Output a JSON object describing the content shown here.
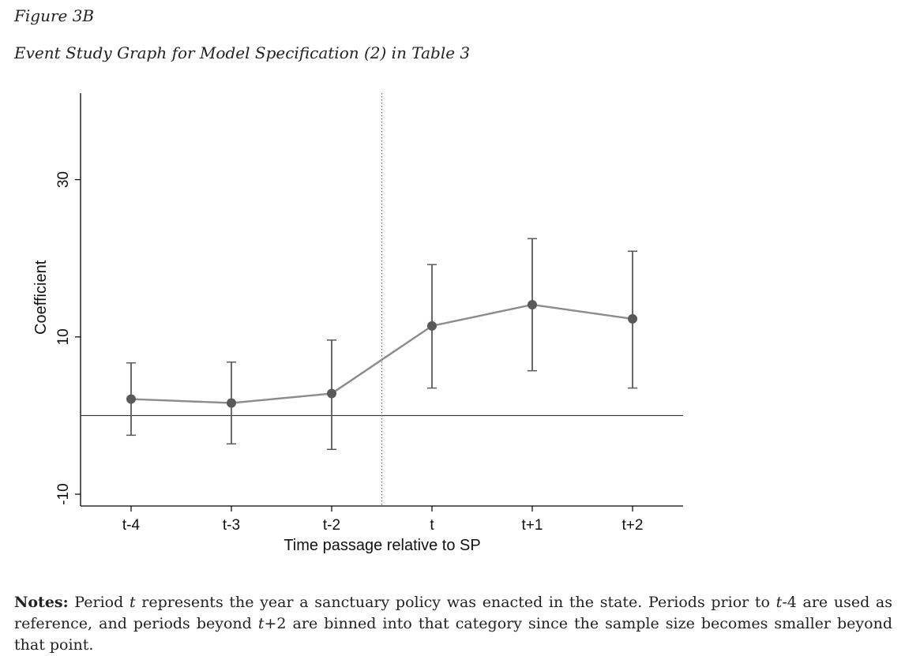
{
  "figure": {
    "label": "Figure 3B",
    "title": "Event Study Graph for Model Specification (2) in Table 3"
  },
  "notes": {
    "lead": "Notes:",
    "part1": " Period ",
    "t1": "t",
    "part2": " represents the year a sanctuary policy was enacted in the state.  Periods prior to ",
    "t2": "t",
    "part3": "-4 are used as reference, and periods beyond ",
    "t3": "t",
    "part4": "+2 are binned into that category since the sample size becomes smaller beyond that point."
  },
  "chart_data": {
    "type": "line",
    "xlabel": "Time passage relative to SP",
    "ylabel": "Coefficient",
    "categories": [
      "t-4",
      "t-3",
      "t-2",
      "t",
      "t+1",
      "t+2"
    ],
    "ylim": [
      -11.5,
      41
    ],
    "yticks": [
      -10,
      10,
      30
    ],
    "reference_line_y": 0,
    "event_line_between": [
      "t-2",
      "t"
    ],
    "grid": false,
    "series": [
      {
        "values": [
          2.1,
          1.6,
          2.8,
          11.4,
          14.1,
          12.3
        ],
        "ci_low": [
          -2.5,
          -3.6,
          -4.3,
          3.5,
          5.7,
          3.5
        ],
        "ci_high": [
          6.7,
          6.8,
          9.6,
          19.2,
          22.5,
          20.9
        ]
      }
    ],
    "colors": {
      "line": "#8c8c8c",
      "marker": "#595959",
      "errorbar": "#5a5a5a",
      "axis": "#000000"
    }
  }
}
